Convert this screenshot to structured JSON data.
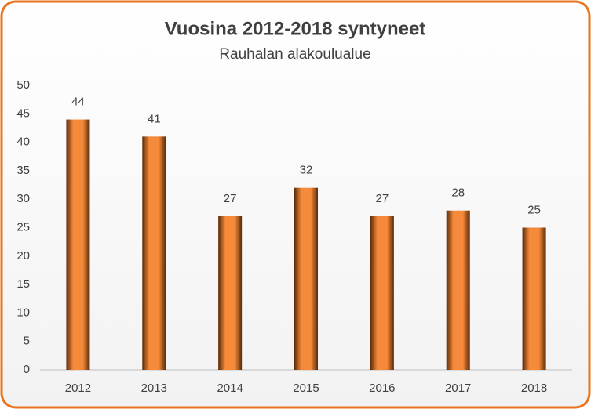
{
  "chart_data": {
    "type": "bar",
    "title": "Vuosina 2012-2018 syntyneet",
    "subtitle": "Rauhalan alakoulualue",
    "categories": [
      "2012",
      "2013",
      "2014",
      "2015",
      "2016",
      "2017",
      "2018"
    ],
    "values": [
      44,
      41,
      27,
      32,
      27,
      28,
      25
    ],
    "color": "#f58a3a",
    "ylim": [
      0,
      50
    ],
    "yticks": [
      0,
      5,
      10,
      15,
      20,
      25,
      30,
      35,
      40,
      45,
      50
    ],
    "grid": false
  }
}
